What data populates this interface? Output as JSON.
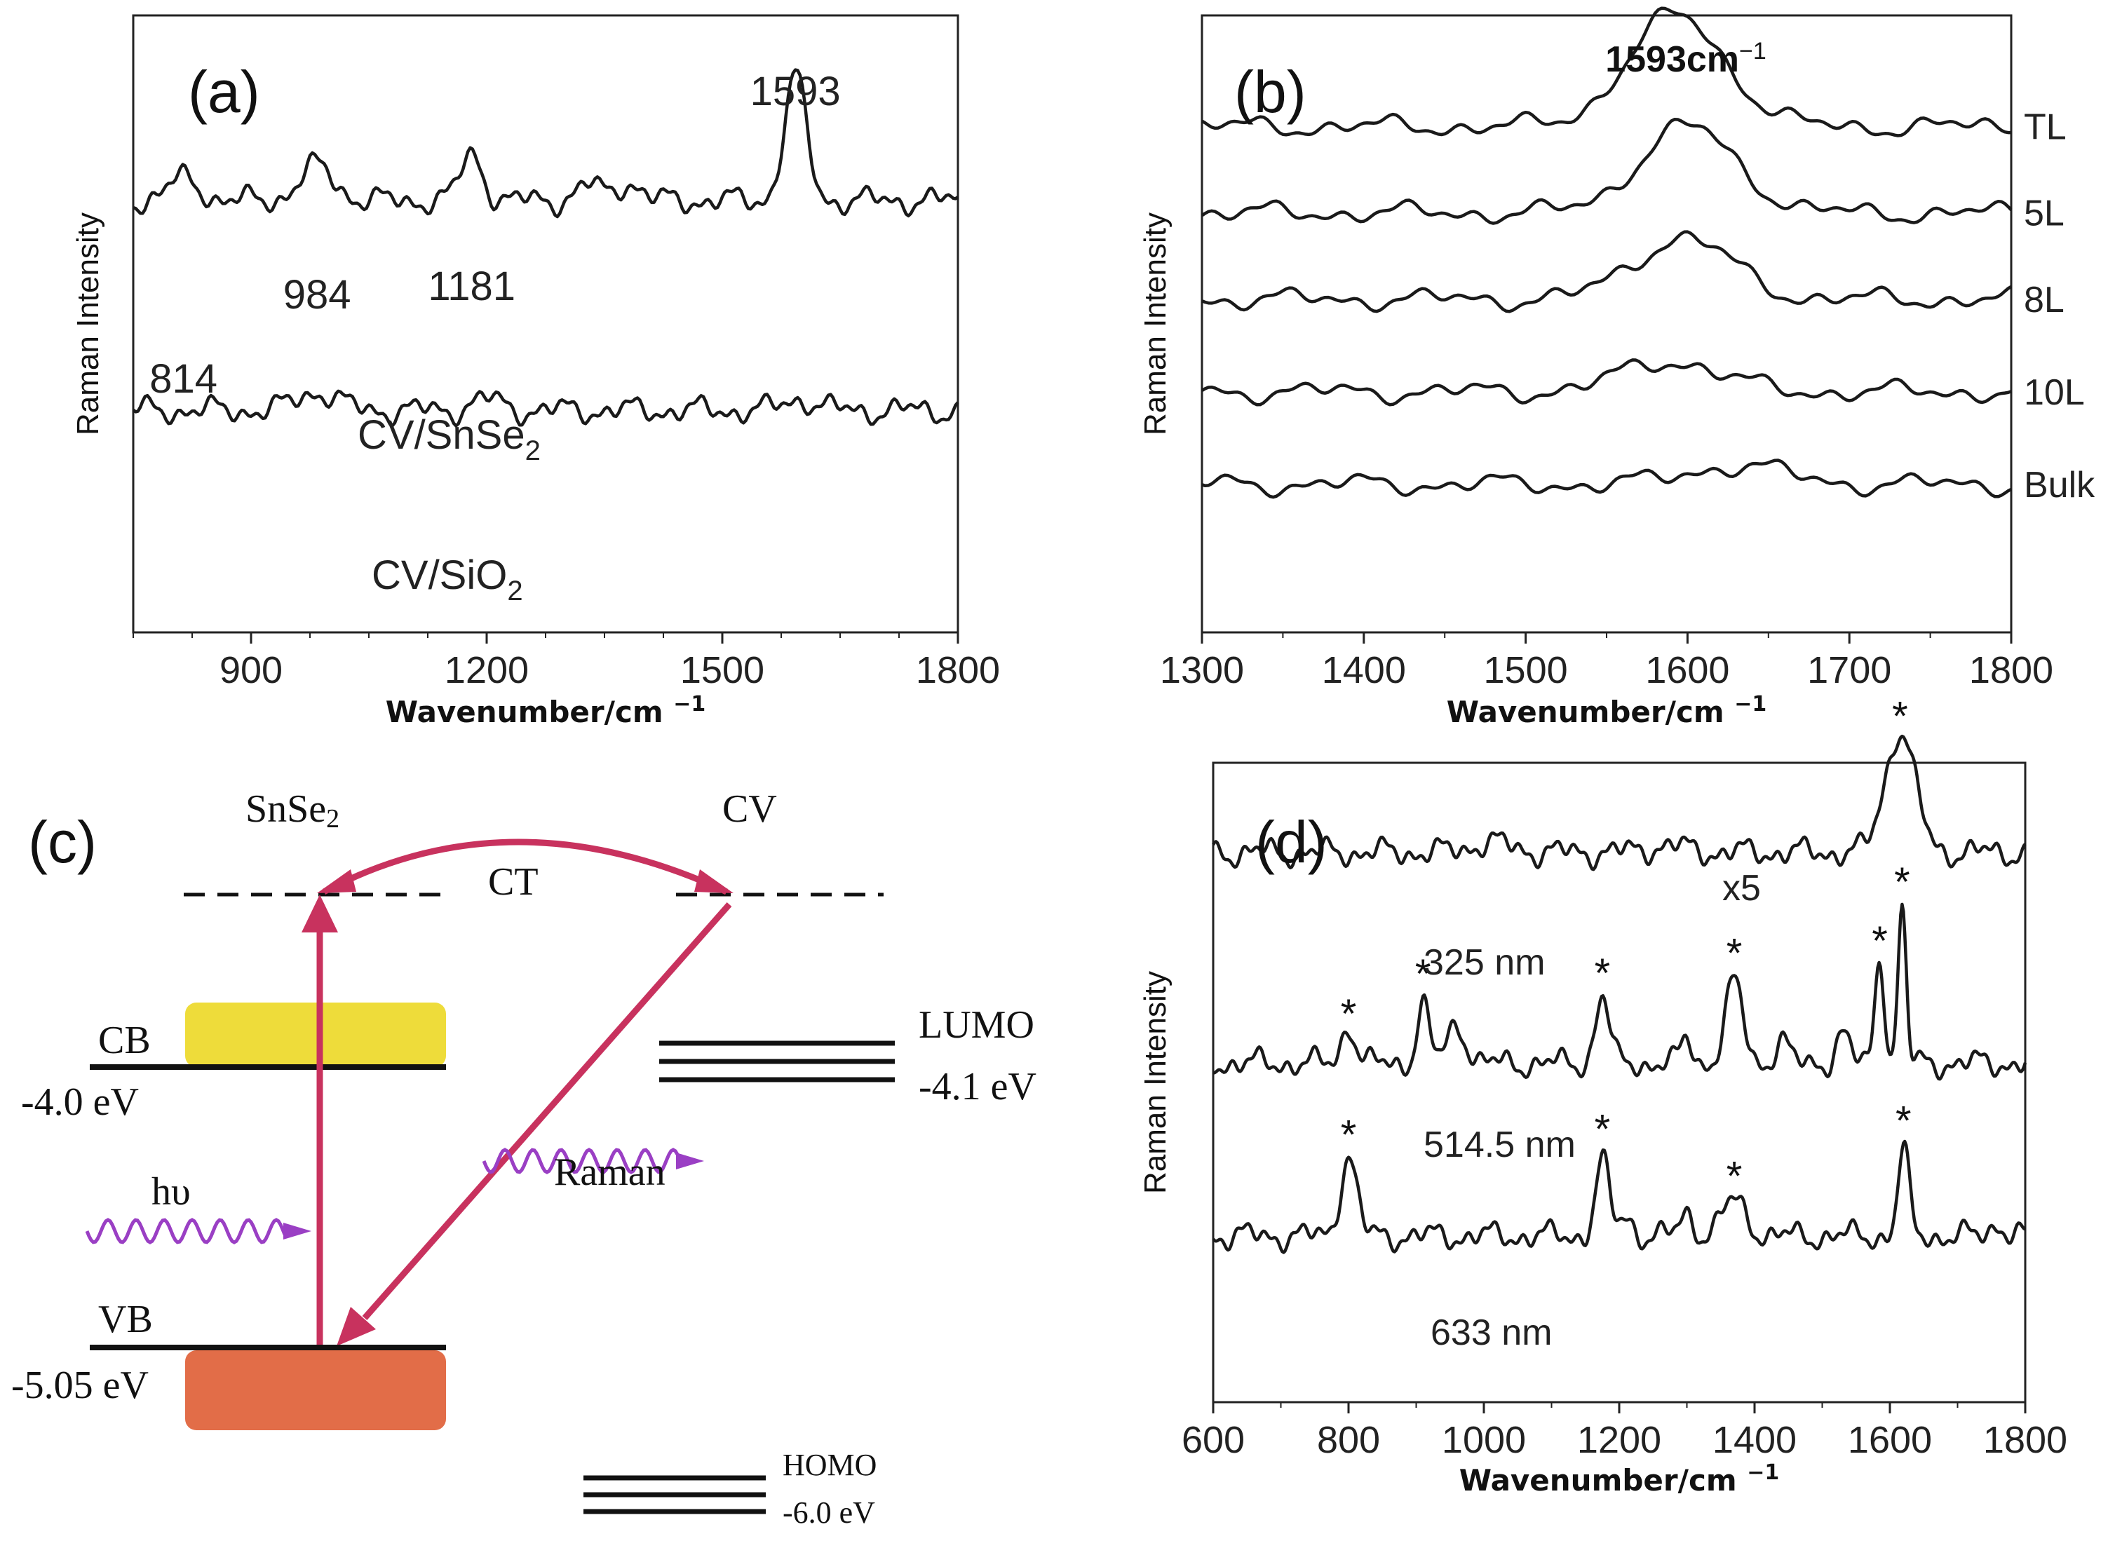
{
  "panels": {
    "a": {
      "label": "(a)"
    },
    "b": {
      "label": "(b)"
    },
    "c": {
      "label": "(c)",
      "snse2_main": "SnSe",
      "snse2_sub": "2",
      "cv_label": "CV",
      "ct_label": "CT",
      "cb_label": "CB",
      "cb_energy": "-4.0 eV",
      "vb_label": "VB",
      "vb_energy": "-5.05 eV",
      "lumo_label": "LUMO",
      "lumo_energy": "-4.1 eV",
      "homo_label": "HOMO",
      "homo_energy": "-6.0 eV",
      "hv_label": "hυ",
      "raman_label": "Raman"
    },
    "d": {
      "label": "(d)"
    }
  },
  "chart_data": [
    {
      "type": "line",
      "title": "",
      "xlabel_main": "Wavenumber/cm ",
      "xlabel_sup": "−1",
      "ylabel": "Raman Intensity",
      "xlim": [
        750,
        1800
      ],
      "ylim": [
        0,
        10
      ],
      "xticks": [
        900,
        1200,
        1500,
        1800
      ],
      "peak_labels": [
        {
          "x": 814,
          "text": "814"
        },
        {
          "x": 984,
          "text": "984"
        },
        {
          "x": 1181,
          "text": "1181"
        },
        {
          "x": 1593,
          "text": "1593"
        }
      ],
      "series": [
        {
          "name": "CV/SnSe2",
          "label_main": "CV/SnSe",
          "label_sub": "2",
          "baseline": 7.0,
          "peaks": [
            [
              814,
              0.35,
              20
            ],
            [
              984,
              0.55,
              22
            ],
            [
              1181,
              0.75,
              14
            ],
            [
              1330,
              0.25,
              15
            ],
            [
              1380,
              0.3,
              15
            ],
            [
              1593,
              2.0,
              14
            ]
          ]
        },
        {
          "name": "CV/SiO2",
          "label_main": "CV/SiO",
          "label_sub": "2",
          "baseline": 3.6,
          "peaks": [
            [
              984,
              0.3,
              25
            ],
            [
              1200,
              0.18,
              18
            ],
            [
              1600,
              0.18,
              20
            ]
          ]
        }
      ]
    },
    {
      "type": "line",
      "title": "",
      "xlabel_main": "Wavenumber/cm ",
      "xlabel_sup": "−1",
      "ylabel": "Raman Intensity",
      "peak_label_main": "1593cm",
      "peak_label_sup": "−1",
      "xlim": [
        1300,
        1800
      ],
      "ylim": [
        0,
        10
      ],
      "xticks": [
        1300,
        1400,
        1500,
        1600,
        1700,
        1800
      ],
      "series": [
        {
          "name": "TL",
          "baseline": 8.2,
          "peak_height": 1.8,
          "peak_x": 1593
        },
        {
          "name": "5L",
          "baseline": 6.8,
          "peak_height": 1.4,
          "peak_x": 1600
        },
        {
          "name": "8L",
          "baseline": 5.4,
          "peak_height": 1.0,
          "peak_x": 1597
        },
        {
          "name": "10L",
          "baseline": 3.9,
          "peak_height": 0.5,
          "peak_x": 1590
        },
        {
          "name": "Bulk",
          "baseline": 2.4,
          "peak_height": 0.3,
          "peak_x": 1630
        }
      ]
    },
    {
      "type": "line",
      "title": "",
      "xlabel_main": "Wavenumber/cm ",
      "xlabel_sup": "−1",
      "ylabel": "Raman Intensity",
      "scale_label": "x5",
      "xlim": [
        600,
        1800
      ],
      "ylim": [
        0,
        10
      ],
      "xticks": [
        600,
        800,
        1000,
        1200,
        1400,
        1600,
        1800
      ],
      "series": [
        {
          "name": "325 nm",
          "baseline": 8.6,
          "peaks": [
            [
              1010,
              0.15,
              30
            ],
            [
              1270,
              0.1,
              30
            ],
            [
              1615,
              1.9,
              22
            ]
          ],
          "stars": [
            1615
          ]
        },
        {
          "name": "514.5 nm",
          "baseline": 5.3,
          "peaks": [
            [
              800,
              0.6,
              10
            ],
            [
              910,
              0.9,
              9
            ],
            [
              960,
              0.6,
              14
            ],
            [
              1175,
              1.05,
              10
            ],
            [
              1300,
              0.4,
              8
            ],
            [
              1370,
              1.25,
              13
            ],
            [
              1440,
              0.35,
              10
            ],
            [
              1530,
              0.45,
              10
            ],
            [
              1585,
              1.7,
              7
            ],
            [
              1618,
              2.4,
              6
            ]
          ],
          "stars": [
            800,
            910,
            1175,
            1370,
            1585,
            1618
          ]
        },
        {
          "name": "633 nm",
          "baseline": 2.6,
          "peaks": [
            [
              800,
              1.25,
              12
            ],
            [
              1175,
              1.15,
              10
            ],
            [
              1210,
              0.3,
              10
            ],
            [
              1300,
              0.35,
              10
            ],
            [
              1370,
              0.55,
              18
            ],
            [
              1620,
              1.35,
              8
            ],
            [
              1760,
              0.2,
              10
            ]
          ],
          "stars": [
            800,
            1175,
            1370,
            1620
          ]
        }
      ]
    }
  ]
}
